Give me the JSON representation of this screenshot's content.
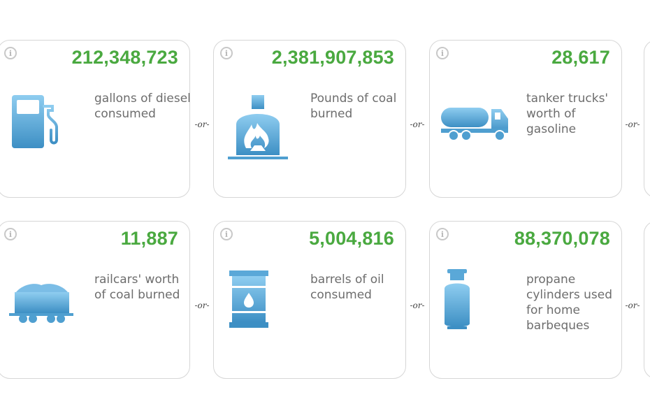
{
  "info_glyph": "i",
  "separator": "-or-",
  "colors": {
    "value_green": "#4aa940",
    "icon_blue": "#4f9fd0",
    "text_gray": "#6d6d6d"
  },
  "cards": [
    {
      "value": "212,348,723",
      "description": "gallons of diesel consumed",
      "icon": "fuel-pump-icon"
    },
    {
      "value": "2,381,907,853",
      "description": "Pounds of coal burned",
      "icon": "coal-furnace-icon"
    },
    {
      "value": "28,617",
      "description": "tanker trucks' worth of gasoline",
      "icon": "tanker-truck-icon"
    },
    {
      "value": "11,887",
      "description": "railcars' worth of coal burned",
      "icon": "coal-railcar-icon"
    },
    {
      "value": "5,004,816",
      "description": "barrels of oil consumed",
      "icon": "oil-barrel-icon"
    },
    {
      "value": "88,370,078",
      "description": "propane cylinders used for home barbeques",
      "icon": "propane-cylinder-icon"
    }
  ]
}
